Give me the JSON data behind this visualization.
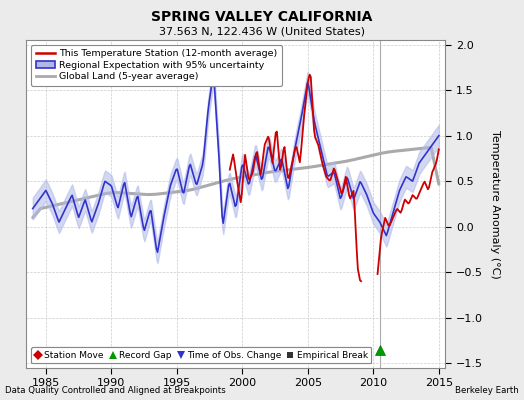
{
  "title": "SPRING VALLEY CALIFORNIA",
  "subtitle": "37.563 N, 122.436 W (United States)",
  "ylabel": "Temperature Anomaly (°C)",
  "xlabel_left": "Data Quality Controlled and Aligned at Breakpoints",
  "xlabel_right": "Berkeley Earth",
  "xlim": [
    1983.5,
    2015.5
  ],
  "ylim": [
    -1.55,
    2.05
  ],
  "yticks": [
    -1.5,
    -1.0,
    -0.5,
    0.0,
    0.5,
    1.0,
    1.5,
    2.0
  ],
  "xticks": [
    1985,
    1990,
    1995,
    2000,
    2005,
    2010,
    2015
  ],
  "bg_color": "#ebebeb",
  "plot_bg_color": "#ffffff",
  "regional_color": "#3333cc",
  "regional_fill_color": "#b0b8e8",
  "station_color": "#cc0000",
  "global_color": "#aaaaaa",
  "record_gap_x": 2010.5,
  "record_gap_y": -1.35
}
